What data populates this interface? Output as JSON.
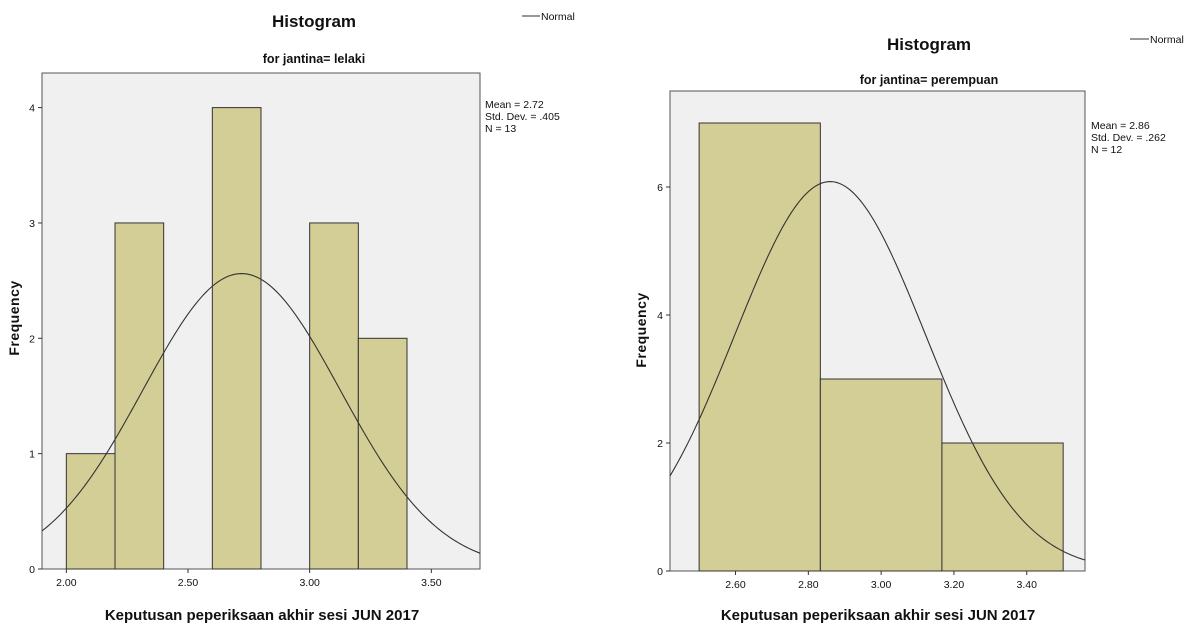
{
  "chart_data": [
    {
      "type": "bar",
      "title": "Histogram",
      "subtitle": "for jantina= lelaki",
      "xlabel": "Keputusan peperiksaan akhir sesi JUN 2017",
      "ylabel": "Frequency",
      "legend": {
        "label": "Normal",
        "placement": "top-right"
      },
      "stats": [
        "Mean = 2.72",
        "Std. Dev. = .405",
        "N = 13"
      ],
      "mean": 2.72,
      "sd": 0.405,
      "n": 13,
      "bins": [
        {
          "start": 2.0,
          "end": 2.2,
          "count": 1
        },
        {
          "start": 2.2,
          "end": 2.4,
          "count": 3
        },
        {
          "start": 2.4,
          "end": 2.6,
          "count": 0
        },
        {
          "start": 2.6,
          "end": 2.8,
          "count": 4
        },
        {
          "start": 2.8,
          "end": 3.0,
          "count": 0
        },
        {
          "start": 3.0,
          "end": 3.2,
          "count": 3
        },
        {
          "start": 3.2,
          "end": 3.4,
          "count": 2
        }
      ],
      "xlim": [
        1.9,
        3.7
      ],
      "ylim": [
        0,
        4.3
      ],
      "xticks": [
        2.0,
        2.5,
        3.0,
        3.5
      ],
      "xtick_labels": [
        "2.00",
        "2.50",
        "3.00",
        "3.50"
      ],
      "yticks": [
        0,
        1,
        2,
        3,
        4
      ],
      "ytick_labels": [
        "0",
        "1",
        "2",
        "3",
        "4"
      ],
      "colors": {
        "bar": "#d3cd96",
        "plot_bg": "#f0f0f0",
        "curve": "#333333"
      }
    },
    {
      "type": "bar",
      "title": "Histogram",
      "subtitle": "for jantina= perempuan",
      "xlabel": "Keputusan peperiksaan akhir sesi JUN 2017",
      "ylabel": "Frequency",
      "legend": {
        "label": "Normal",
        "placement": "top-right"
      },
      "stats": [
        "Mean = 2.86",
        "Std. Dev. = .262",
        "N = 12"
      ],
      "mean": 2.86,
      "sd": 0.262,
      "n": 12,
      "bins": [
        {
          "start": 2.5,
          "end": 2.833,
          "count": 7
        },
        {
          "start": 2.833,
          "end": 3.167,
          "count": 3
        },
        {
          "start": 3.167,
          "end": 3.5,
          "count": 2
        }
      ],
      "xlim": [
        2.42,
        3.56
      ],
      "ylim": [
        0,
        7.5
      ],
      "xticks": [
        2.6,
        2.8,
        3.0,
        3.2,
        3.4
      ],
      "xtick_labels": [
        "2.60",
        "2.80",
        "3.00",
        "3.20",
        "3.40"
      ],
      "yticks": [
        0,
        2,
        4,
        6
      ],
      "ytick_labels": [
        "0",
        "2",
        "4",
        "6"
      ],
      "colors": {
        "bar": "#d3cd96",
        "plot_bg": "#f0f0f0",
        "curve": "#333333"
      }
    }
  ]
}
